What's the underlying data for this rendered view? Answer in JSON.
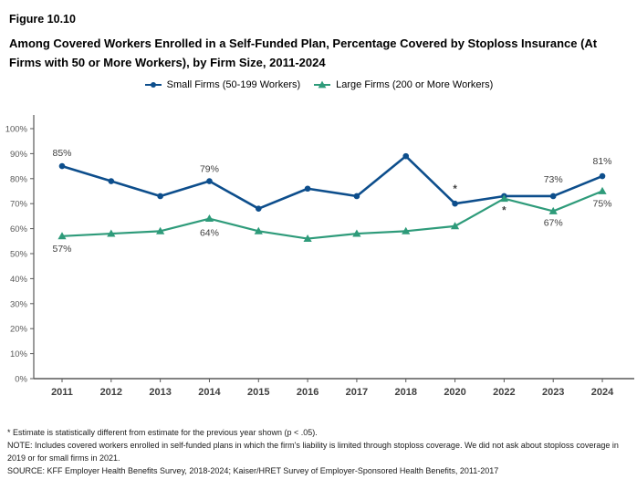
{
  "header": {
    "figure_number": "Figure 10.10",
    "title": "Among Covered Workers Enrolled in a Self-Funded Plan, Percentage Covered by Stoploss Insurance (At Firms with 50 or More Workers), by Firm Size, 2011-2024"
  },
  "chart_data": {
    "type": "line",
    "title": "Percentage Covered by Stoploss Insurance, by Firm Size, 2011-2024",
    "xlabel": "",
    "ylabel": "",
    "ylim": [
      0,
      100
    ],
    "yticks": [
      "0%",
      "10%",
      "20%",
      "30%",
      "40%",
      "50%",
      "60%",
      "70%",
      "80%",
      "90%",
      "100%"
    ],
    "grid": false,
    "legend_position": "top-center",
    "axis_color": "#595959",
    "data_label_color": "#404040",
    "categories": [
      "2011",
      "2012",
      "2013",
      "2014",
      "2015",
      "2016",
      "2017",
      "2018",
      "2020",
      "2022",
      "2023",
      "2024"
    ],
    "series": [
      {
        "name": "Small Firms (50-199 Workers)",
        "color": "#0D4E8C",
        "marker": "circle",
        "line_width": 2.6,
        "values": [
          85,
          79,
          73,
          79,
          68,
          76,
          73,
          89,
          70,
          73,
          73,
          81
        ],
        "point_labels": [
          {
            "i": 0,
            "text": "85%",
            "dy": -11
          },
          {
            "i": 3,
            "text": "79%",
            "dy": -10
          },
          {
            "i": 10,
            "text": "73%",
            "dy": -15
          },
          {
            "i": 11,
            "text": "81%",
            "dy": -13
          },
          {
            "i": 8,
            "text": "*",
            "dy": -12,
            "star": true
          }
        ]
      },
      {
        "name": "Large Firms (200 or More Workers)",
        "color": "#2E9B7A",
        "marker": "triangle",
        "line_width": 2.2,
        "values": [
          57,
          58,
          59,
          64,
          59,
          56,
          58,
          59,
          61,
          72,
          67,
          75
        ],
        "point_labels": [
          {
            "i": 0,
            "text": "57%",
            "dy": 17
          },
          {
            "i": 3,
            "text": "64%",
            "dy": 19
          },
          {
            "i": 10,
            "text": "67%",
            "dy": 16
          },
          {
            "i": 11,
            "text": "75%",
            "dy": 17
          },
          {
            "i": 9,
            "text": "*",
            "dy": 17,
            "star": true
          }
        ]
      }
    ]
  },
  "footnotes": {
    "asterisk_note": "* Estimate is statistically different from estimate for the previous year shown (p < .05).",
    "note": "NOTE: Includes covered workers enrolled in self-funded plans in which the firm's liability is limited through stoploss coverage. We did not ask about stoploss coverage in 2019 or for small firms in 2021.",
    "source": "SOURCE: KFF Employer Health Benefits Survey, 2018-2024; Kaiser/HRET Survey of Employer-Sponsored Health Benefits, 2011-2017"
  }
}
